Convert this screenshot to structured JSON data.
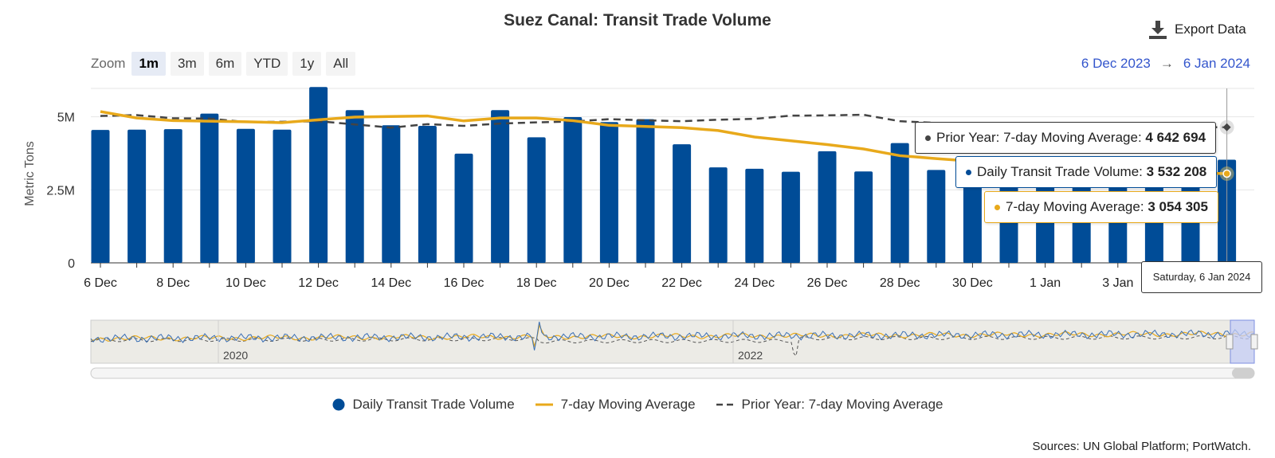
{
  "title": "Suez Canal: Transit Trade Volume",
  "export_label": "Export Data",
  "zoom": {
    "label": "Zoom",
    "buttons": [
      "1m",
      "3m",
      "6m",
      "YTD",
      "1y",
      "All"
    ],
    "active": "1m"
  },
  "range": {
    "from": "6 Dec 2023",
    "arrow": "→",
    "to": "6 Jan 2024"
  },
  "tooltip": {
    "date": "Saturday, 6 Jan 2024",
    "prior_label": "Prior Year: 7-day Moving Average:",
    "prior_value": "4 642 694",
    "daily_label": "Daily Transit Trade Volume:",
    "daily_value": "3 532 208",
    "ma_label": "7-day Moving Average:",
    "ma_value": "3 054 305"
  },
  "navigator": {
    "labels": [
      "2020",
      "2022"
    ]
  },
  "legend": [
    "Daily Transit Trade Volume",
    "7-day Moving Average",
    "Prior Year: 7-day Moving Average"
  ],
  "source": "Sources: UN Global Platform; PortWatch.",
  "colors": {
    "bar": "#004c97",
    "ma": "#e8a91b",
    "prior": "#444444",
    "range": "#3355cc"
  },
  "chart_data": {
    "type": "bar",
    "ylabel": "Metric Tons",
    "ylim": [
      0,
      6000000
    ],
    "yticks": [
      0,
      2500000,
      5000000
    ],
    "yticklabels": [
      "0",
      "2.5M",
      "5M"
    ],
    "categories": [
      "6 Dec",
      "7 Dec",
      "8 Dec",
      "9 Dec",
      "10 Dec",
      "11 Dec",
      "12 Dec",
      "13 Dec",
      "14 Dec",
      "15 Dec",
      "16 Dec",
      "17 Dec",
      "18 Dec",
      "19 Dec",
      "20 Dec",
      "21 Dec",
      "22 Dec",
      "23 Dec",
      "24 Dec",
      "25 Dec",
      "26 Dec",
      "27 Dec",
      "28 Dec",
      "29 Dec",
      "30 Dec",
      "31 Dec",
      "1 Jan",
      "2 Jan",
      "3 Jan",
      "4 Jan",
      "5 Jan",
      "6 Jan"
    ],
    "xticklabels": [
      "6 Dec",
      "",
      "8 Dec",
      "",
      "10 Dec",
      "",
      "12 Dec",
      "",
      "14 Dec",
      "",
      "16 Dec",
      "",
      "18 Dec",
      "",
      "20 Dec",
      "",
      "22 Dec",
      "",
      "24 Dec",
      "",
      "26 Dec",
      "",
      "28 Dec",
      "",
      "30 Dec",
      "",
      "1 Jan",
      "",
      "3 Jan",
      "",
      "",
      ""
    ],
    "series": [
      {
        "name": "Daily Transit Trade Volume",
        "type": "bar",
        "values": [
          4550000,
          4560000,
          4580000,
          5110000,
          4590000,
          4560000,
          6020000,
          5230000,
          4710000,
          4690000,
          3740000,
          5230000,
          4300000,
          4990000,
          4820000,
          4920000,
          4060000,
          3270000,
          3220000,
          3120000,
          3820000,
          3130000,
          4100000,
          3180000,
          3400000,
          3300000,
          3350000,
          3250000,
          3550000,
          3450000,
          3380000,
          3532208
        ]
      },
      {
        "name": "7-day Moving Average",
        "type": "line",
        "values": [
          5180000,
          4960000,
          4870000,
          4850000,
          4830000,
          4800000,
          4900000,
          4990000,
          5010000,
          5030000,
          4860000,
          4960000,
          4960000,
          4870000,
          4710000,
          4670000,
          4630000,
          4530000,
          4310000,
          4180000,
          4050000,
          3900000,
          3670000,
          3570000,
          3480000,
          3300000,
          3250000,
          3200000,
          3150000,
          3100000,
          3080000,
          3054305
        ]
      },
      {
        "name": "Prior Year: 7-day Moving Average",
        "type": "line",
        "values": [
          5030000,
          5060000,
          4950000,
          4940000,
          4820000,
          4830000,
          4850000,
          4740000,
          4630000,
          4750000,
          4690000,
          4770000,
          4810000,
          4840000,
          4920000,
          4880000,
          4850000,
          4900000,
          4930000,
          5040000,
          5050000,
          5070000,
          4850000,
          4790000,
          4700000,
          4680000,
          4720000,
          4760000,
          4750000,
          4700000,
          4650000,
          4642694
        ]
      }
    ]
  }
}
